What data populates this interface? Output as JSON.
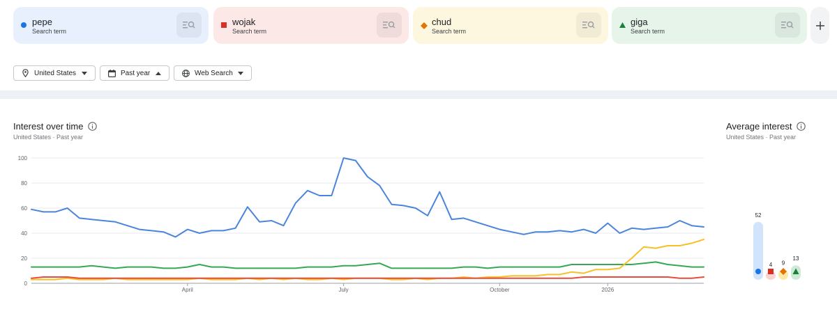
{
  "terms": [
    {
      "name": "pepe",
      "sub": "Search term",
      "color": "#1a73e8",
      "bg": "#e8f0fe",
      "shape": "circle"
    },
    {
      "name": "wojak",
      "sub": "Search term",
      "color": "#d93025",
      "bg": "#fce8e6",
      "shape": "square"
    },
    {
      "name": "chud",
      "sub": "Search term",
      "color": "#e37400",
      "bg": "#fef7e0",
      "shape": "diamond"
    },
    {
      "name": "giga",
      "sub": "Search term",
      "color": "#188038",
      "bg": "#e6f4ea",
      "shape": "triangle"
    }
  ],
  "add_icon": "plus-icon",
  "filters": {
    "region": "United States",
    "period": "Past year",
    "property": "Web Search"
  },
  "interest": {
    "title": "Interest over time",
    "sub": "United States · Past year"
  },
  "average": {
    "title": "Average interest",
    "sub": "United States · Past year"
  },
  "chart_data": [
    {
      "type": "line",
      "title": "Interest over time",
      "ylim": [
        0,
        100
      ],
      "yticks": [
        0,
        20,
        40,
        60,
        80,
        100
      ],
      "grid": true,
      "xlabels": [
        {
          "label": "April",
          "index": 13
        },
        {
          "label": "July",
          "index": 26
        },
        {
          "label": "October",
          "index": 39
        },
        {
          "label": "2026",
          "index": 48
        }
      ],
      "series": [
        {
          "name": "pepe",
          "color": "#4a84dd",
          "values": [
            59,
            57,
            57,
            60,
            52,
            51,
            50,
            49,
            46,
            43,
            42,
            41,
            37,
            43,
            40,
            42,
            42,
            44,
            61,
            49,
            50,
            46,
            64,
            74,
            70,
            70,
            100,
            98,
            85,
            78,
            63,
            62,
            60,
            54,
            73,
            51,
            52,
            49,
            46,
            43,
            41,
            39,
            41,
            41,
            42,
            41,
            43,
            40,
            48,
            40,
            44,
            43,
            44,
            45,
            50,
            46,
            45
          ]
        },
        {
          "name": "wojak",
          "color": "#e74c3c",
          "values": [
            4,
            5,
            5,
            5,
            4,
            4,
            4,
            4,
            4,
            4,
            4,
            4,
            4,
            4,
            4,
            4,
            4,
            4,
            4,
            4,
            4,
            4,
            4,
            4,
            4,
            4,
            4,
            4,
            4,
            4,
            4,
            4,
            4,
            4,
            4,
            4,
            4,
            4,
            4,
            4,
            4,
            4,
            4,
            4,
            4,
            4,
            5,
            5,
            5,
            5,
            5,
            5,
            5,
            5,
            4,
            4,
            5
          ]
        },
        {
          "name": "chud",
          "color": "#f6c026",
          "values": [
            3,
            3,
            3,
            4,
            3,
            3,
            3,
            4,
            3,
            3,
            3,
            3,
            3,
            3,
            4,
            3,
            3,
            3,
            4,
            3,
            4,
            3,
            4,
            3,
            3,
            4,
            3,
            4,
            4,
            4,
            3,
            3,
            4,
            3,
            4,
            4,
            5,
            4,
            5,
            5,
            6,
            6,
            6,
            7,
            7,
            9,
            8,
            11,
            11,
            12,
            20,
            29,
            28,
            30,
            30,
            32,
            35
          ]
        },
        {
          "name": "giga",
          "color": "#34a853",
          "values": [
            13,
            13,
            13,
            13,
            13,
            14,
            13,
            12,
            13,
            13,
            13,
            12,
            12,
            13,
            15,
            13,
            13,
            12,
            12,
            12,
            12,
            12,
            12,
            13,
            13,
            13,
            14,
            14,
            15,
            16,
            12,
            12,
            12,
            12,
            12,
            12,
            13,
            13,
            12,
            13,
            13,
            13,
            13,
            13,
            13,
            15,
            15,
            15,
            15,
            15,
            15,
            16,
            17,
            15,
            14,
            13,
            13
          ]
        }
      ]
    },
    {
      "type": "bar",
      "title": "Average interest",
      "categories": [
        "pepe",
        "wojak",
        "chud",
        "giga"
      ],
      "values": [
        52,
        4,
        9,
        13
      ],
      "colors": [
        "#1a73e8",
        "#d93025",
        "#e37400",
        "#188038"
      ],
      "light_colors": [
        "#d2e3fc",
        "#fad2cf",
        "#fde9a8",
        "#ceead6"
      ],
      "ylim": [
        0,
        100
      ]
    }
  ]
}
